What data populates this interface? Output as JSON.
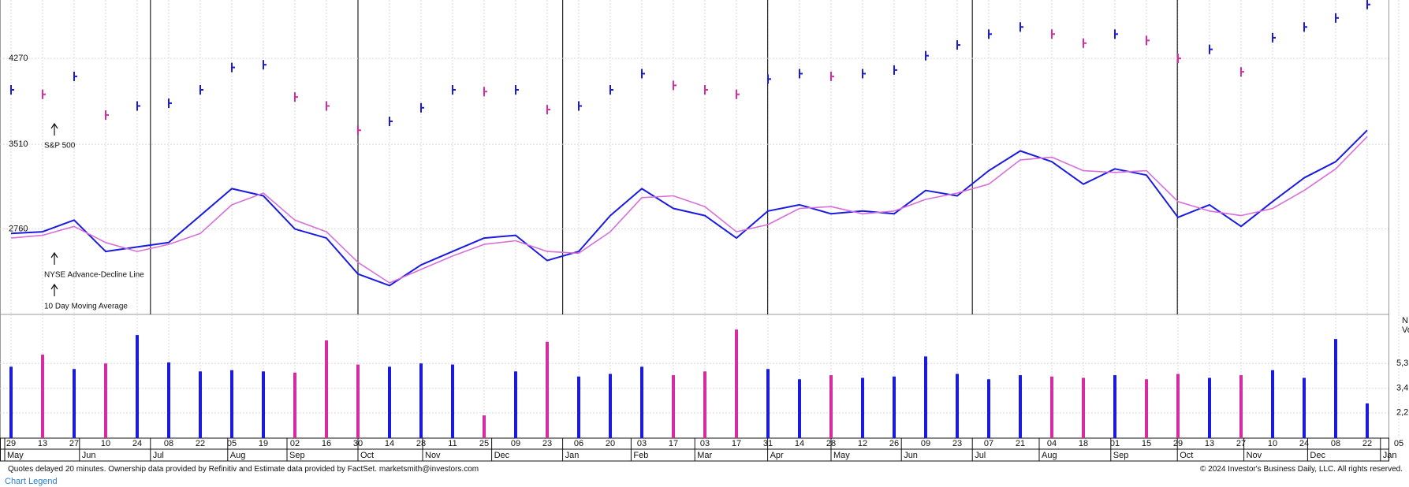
{
  "chart_data": [
    {
      "type": "line",
      "categories": [
        "29",
        "13",
        "27",
        "10",
        "24",
        "08",
        "22",
        "05",
        "19",
        "02",
        "16",
        "30",
        "14",
        "28",
        "11",
        "25",
        "09",
        "23",
        "06",
        "20",
        "03",
        "17",
        "03",
        "17",
        "31",
        "14",
        "28",
        "12",
        "26",
        "09",
        "23",
        "07",
        "21",
        "04",
        "18",
        "01",
        "15",
        "29",
        "13",
        "27",
        "10",
        "24",
        "08",
        "22",
        "05"
      ],
      "month_ticks": [
        {
          "value": -0.2,
          "label": "May"
        },
        {
          "value": 2.17,
          "label": "Jun"
        },
        {
          "value": 4.42,
          "label": "Jul"
        },
        {
          "value": 6.87,
          "label": "Aug"
        },
        {
          "value": 8.75,
          "label": "Sep"
        },
        {
          "value": 11.0,
          "label": "Oct"
        },
        {
          "value": 13.05,
          "label": "Nov"
        },
        {
          "value": 15.24,
          "label": "Dec"
        },
        {
          "value": 17.49,
          "label": "Jan"
        },
        {
          "value": 19.66,
          "label": "Feb"
        },
        {
          "value": 21.68,
          "label": "Mar"
        },
        {
          "value": 23.99,
          "label": "Apr"
        },
        {
          "value": 26.0,
          "label": "May"
        },
        {
          "value": 28.23,
          "label": "Jun"
        },
        {
          "value": 30.48,
          "label": "Jul"
        },
        {
          "value": 32.6,
          "label": "Aug"
        },
        {
          "value": 34.87,
          "label": "Sep"
        },
        {
          "value": 36.98,
          "label": "Oct"
        },
        {
          "value": 39.09,
          "label": "Nov"
        },
        {
          "value": 41.11,
          "label": "Dec"
        },
        {
          "value": 43.42,
          "label": "Jan"
        }
      ],
      "vlines": [
        4.42,
        11.0,
        17.49,
        23.99,
        30.48,
        36.98
      ],
      "series": [
        {
          "name": "S&P 500",
          "color": "#1a1adb",
          "down_color": "#d62ca0",
          "values": [
            3992,
            3952,
            4111,
            3769,
            3849,
            3873,
            3992,
            4190,
            4214,
            3928,
            3849,
            3634,
            3713,
            3833,
            3992,
            3976,
            3992,
            3817,
            3849,
            3992,
            4135,
            4031,
            3992,
            3952,
            4087,
            4135,
            4111,
            4135,
            4167,
            4294,
            4389,
            4485,
            4548,
            4485,
            4405,
            4485,
            4429,
            4270,
            4350,
            4151,
            4453,
            4548,
            4628,
            4747,
            null
          ]
        },
        {
          "name": "NYSE Advance-Decline Line",
          "color": "#1a1ae0",
          "values": [
            2720,
            2736,
            2839,
            2561,
            2601,
            2640,
            2879,
            3117,
            3054,
            2760,
            2680,
            2362,
            2259,
            2442,
            2561,
            2680,
            2704,
            2481,
            2561,
            2879,
            3117,
            2942,
            2879,
            2680,
            2919,
            2974,
            2895,
            2919,
            2895,
            3101,
            3054,
            3276,
            3451,
            3356,
            3157,
            3292,
            3237,
            2863,
            2974,
            2783,
            3003,
            3213,
            3356,
            3634,
            null
          ]
        },
        {
          "name": "10 Day Moving Average",
          "color": "#d86fd8",
          "values": [
            2680,
            2704,
            2783,
            2640,
            2561,
            2624,
            2720,
            2974,
            3078,
            2839,
            2736,
            2465,
            2283,
            2402,
            2521,
            2624,
            2656,
            2561,
            2545,
            2736,
            3038,
            3054,
            2958,
            2736,
            2799,
            2942,
            2958,
            2895,
            2919,
            3022,
            3078,
            3157,
            3372,
            3396,
            3276,
            3261,
            3276,
            3003,
            2919,
            2879,
            2942,
            3101,
            3292,
            3578,
            null
          ]
        }
      ],
      "ylim": [
        2004,
        4787
      ],
      "yticks": [
        4270,
        3510,
        2760
      ],
      "grid": true
    },
    {
      "type": "bar",
      "log": true,
      "color": "#1a1adb",
      "down_color": "#d62ca0",
      "axis_label": [
        "N",
        "Vo"
      ],
      "values": [
        5000,
        6200,
        4800,
        5300,
        8800,
        5400,
        4600,
        4700,
        4600,
        4500,
        8000,
        5200,
        5000,
        5300,
        5200,
        2100,
        4600,
        7800,
        4200,
        4400,
        5000,
        4300,
        4600,
        9700,
        4800,
        4000,
        4300,
        4100,
        4200,
        6000,
        4400,
        4000,
        4300,
        4200,
        4100,
        4300,
        4000,
        4400,
        4100,
        4300,
        4700,
        4100,
        8200,
        2600,
        null
      ],
      "ylim": [
        1400,
        12700
      ],
      "yticks": [
        {
          "value": 5300,
          "label": "5,3"
        },
        {
          "value": 3400,
          "label": "3,4"
        },
        {
          "value": 2200,
          "label": "2,2"
        }
      ],
      "grid": true
    }
  ],
  "footer": {
    "left": "Quotes delayed 20 minutes. Ownership data provided by Refinitiv and Estimate data provided by FactSet. marketsmith@investors.com",
    "right": "© 2024 Investor's Business Daily, LLC. All rights reserved.",
    "link": "Chart Legend"
  }
}
